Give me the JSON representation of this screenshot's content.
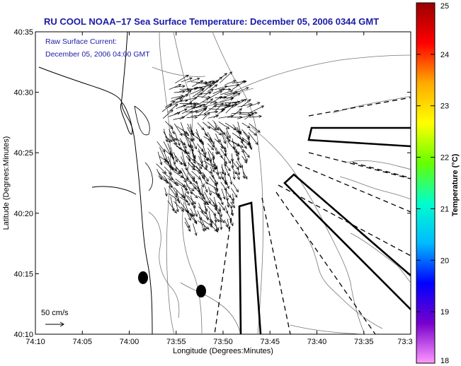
{
  "title": "RU COOL  NOAA−17  Sea Surface Temperature:  December 05, 2006 0344 GMT",
  "annotation": {
    "line1": "Raw Surface Current:",
    "line2": "December 05, 2006 04:00 GMT"
  },
  "scale_label": "50 cm/s",
  "xaxis": {
    "label": "Longitude (Degrees:Minutes)",
    "ticks": [
      "74:10",
      "74:05",
      "74:00",
      "73:55",
      "73:50",
      "73:45",
      "73:40",
      "73:35",
      "73:3"
    ]
  },
  "yaxis": {
    "label": "Latitude (Degrees:Minutes)",
    "ticks": [
      "40:35",
      "40:30",
      "40:25",
      "40:20",
      "40:15",
      "40:10"
    ]
  },
  "colorbar": {
    "label": "Temperature (°C)",
    "ticks": [
      "25",
      "24",
      "23",
      "22",
      "21",
      "20",
      "19",
      "18"
    ],
    "min": 18,
    "max": 25,
    "stops": [
      "#ff99ff",
      "#7700cc",
      "#0000ff",
      "#00bbff",
      "#00ffcc",
      "#66ff00",
      "#ffff00",
      "#ffaa00",
      "#ff0000",
      "#990000"
    ]
  }
}
